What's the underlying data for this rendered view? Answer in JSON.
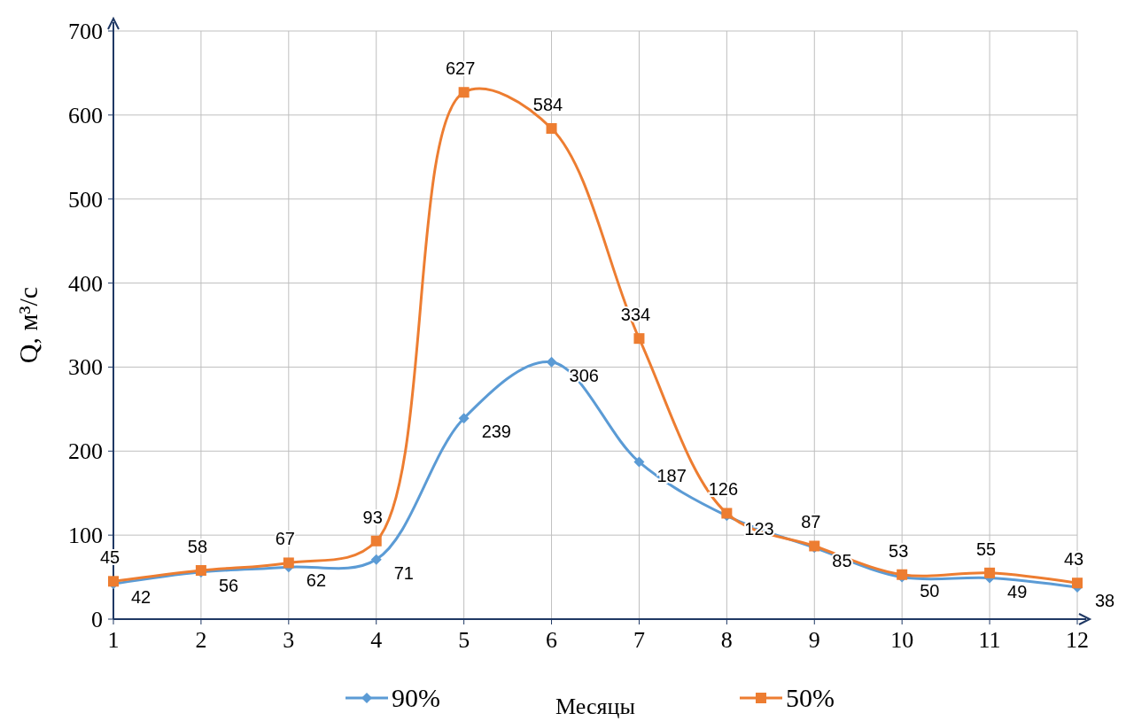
{
  "chart_data": {
    "type": "line",
    "xlabel": "Месяцы",
    "ylabel": "Q, м³/с",
    "x": [
      1,
      2,
      3,
      4,
      5,
      6,
      7,
      8,
      9,
      10,
      11,
      12
    ],
    "xlim": [
      1,
      12
    ],
    "xticks": [
      1,
      2,
      3,
      4,
      5,
      6,
      7,
      8,
      9,
      10,
      11,
      12
    ],
    "ylim": [
      0,
      700
    ],
    "yticks": [
      0,
      100,
      200,
      300,
      400,
      500,
      600,
      700
    ],
    "grid": true,
    "legend": "bottom",
    "data_labels": true,
    "series": [
      {
        "name": "90%",
        "color": "#5b9bd5",
        "marker": "diamond",
        "values": [
          42,
          56,
          62,
          71,
          239,
          306,
          187,
          123,
          85,
          50,
          49,
          38
        ]
      },
      {
        "name": "50%",
        "color": "#ed7d31",
        "marker": "square",
        "values": [
          45,
          58,
          67,
          93,
          627,
          584,
          334,
          126,
          87,
          53,
          55,
          43
        ]
      }
    ]
  }
}
